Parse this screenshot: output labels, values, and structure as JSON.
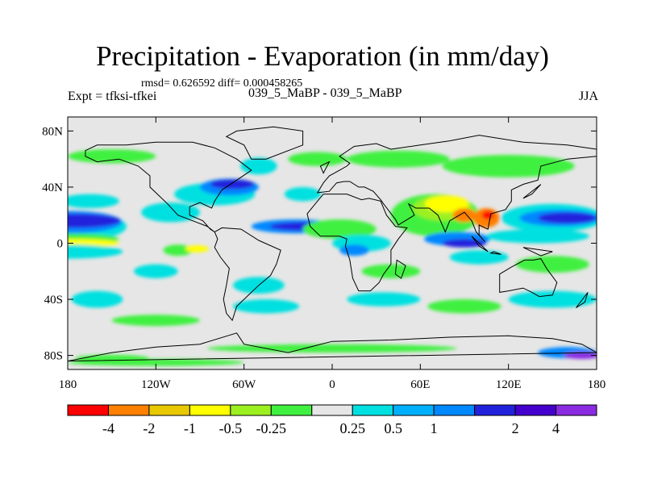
{
  "title": "Precipitation - Evaporation (in mm/day)",
  "stats": "rmsd= 0.626592 diff= 0.000458265",
  "expt": "Expt = tfksi-tfkei",
  "case": "039_5_MaBP - 039_5_MaBP",
  "season": "JJA",
  "map": {
    "lon_range": [
      -180,
      180
    ],
    "lat_range": [
      -90,
      90
    ],
    "lat_ticks": [
      {
        "value": 80,
        "label": "80N"
      },
      {
        "value": 40,
        "label": "40N"
      },
      {
        "value": 0,
        "label": "0"
      },
      {
        "value": -40,
        "label": "40S"
      },
      {
        "value": -80,
        "label": "80S"
      }
    ],
    "lon_ticks": [
      {
        "value": -180,
        "label": "180"
      },
      {
        "value": -120,
        "label": "120W"
      },
      {
        "value": -60,
        "label": "60W"
      },
      {
        "value": 0,
        "label": "0"
      },
      {
        "value": 60,
        "label": "60E"
      },
      {
        "value": 120,
        "label": "120E"
      },
      {
        "value": 180,
        "label": "180"
      }
    ],
    "background_color": "#e6e6e6",
    "field_blobs": [
      {
        "lon": -180,
        "lat": 12,
        "w": 80,
        "h": 22,
        "color": "#00e0e0"
      },
      {
        "lon": -178,
        "lat": 15,
        "w": 70,
        "h": 16,
        "color": "#0088ff"
      },
      {
        "lon": -175,
        "lat": 16,
        "w": 62,
        "h": 10,
        "color": "#2222dd"
      },
      {
        "lon": -180,
        "lat": 3,
        "w": 70,
        "h": 8,
        "color": "#40f040"
      },
      {
        "lon": -175,
        "lat": 0,
        "w": 60,
        "h": 6,
        "color": "#ffff00"
      },
      {
        "lon": -180,
        "lat": -6,
        "w": 75,
        "h": 10,
        "color": "#00e0e0"
      },
      {
        "lon": -110,
        "lat": 22,
        "w": 40,
        "h": 14,
        "color": "#00e0e0"
      },
      {
        "lon": -80,
        "lat": 35,
        "w": 55,
        "h": 16,
        "color": "#00e0e0"
      },
      {
        "lon": -70,
        "lat": 40,
        "w": 40,
        "h": 12,
        "color": "#0088ff"
      },
      {
        "lon": -68,
        "lat": 42,
        "w": 30,
        "h": 7,
        "color": "#2222dd"
      },
      {
        "lon": -50,
        "lat": 55,
        "w": 25,
        "h": 12,
        "color": "#00e0e0"
      },
      {
        "lon": -150,
        "lat": 62,
        "w": 60,
        "h": 10,
        "color": "#40f040"
      },
      {
        "lon": -165,
        "lat": 30,
        "w": 40,
        "h": 10,
        "color": "#00e0e0"
      },
      {
        "lon": -105,
        "lat": -5,
        "w": 20,
        "h": 8,
        "color": "#40f040"
      },
      {
        "lon": -92,
        "lat": -4,
        "w": 16,
        "h": 5,
        "color": "#ffff00"
      },
      {
        "lon": -120,
        "lat": -20,
        "w": 30,
        "h": 10,
        "color": "#00e0e0"
      },
      {
        "lon": -160,
        "lat": -40,
        "w": 35,
        "h": 12,
        "color": "#00e0e0"
      },
      {
        "lon": -50,
        "lat": -30,
        "w": 35,
        "h": 12,
        "color": "#00e0e0"
      },
      {
        "lon": -45,
        "lat": -45,
        "w": 45,
        "h": 10,
        "color": "#00e0e0"
      },
      {
        "lon": -20,
        "lat": 35,
        "w": 25,
        "h": 10,
        "color": "#00e0e0"
      },
      {
        "lon": -25,
        "lat": 12,
        "w": 60,
        "h": 10,
        "color": "#0088ff"
      },
      {
        "lon": -20,
        "lat": 12,
        "w": 45,
        "h": 6,
        "color": "#2222dd"
      },
      {
        "lon": 5,
        "lat": 10,
        "w": 50,
        "h": 14,
        "color": "#40f040"
      },
      {
        "lon": 20,
        "lat": 0,
        "w": 40,
        "h": 12,
        "color": "#00e0e0"
      },
      {
        "lon": 15,
        "lat": -5,
        "w": 20,
        "h": 8,
        "color": "#0088ff"
      },
      {
        "lon": 40,
        "lat": -20,
        "w": 40,
        "h": 10,
        "color": "#40f040"
      },
      {
        "lon": 35,
        "lat": -40,
        "w": 50,
        "h": 10,
        "color": "#00e0e0"
      },
      {
        "lon": 70,
        "lat": 20,
        "w": 60,
        "h": 30,
        "color": "#40f040"
      },
      {
        "lon": 75,
        "lat": 25,
        "w": 40,
        "h": 18,
        "color": "#9cf020"
      },
      {
        "lon": 78,
        "lat": 28,
        "w": 30,
        "h": 12,
        "color": "#ffff00"
      },
      {
        "lon": 90,
        "lat": 20,
        "w": 16,
        "h": 10,
        "color": "#ff8000"
      },
      {
        "lon": 105,
        "lat": 18,
        "w": 18,
        "h": 14,
        "color": "#ff8000"
      },
      {
        "lon": 106,
        "lat": 20,
        "w": 8,
        "h": 6,
        "color": "#ff0000"
      },
      {
        "lon": 85,
        "lat": 3,
        "w": 45,
        "h": 10,
        "color": "#0088ff"
      },
      {
        "lon": 90,
        "lat": 0,
        "w": 30,
        "h": 6,
        "color": "#2222dd"
      },
      {
        "lon": 100,
        "lat": -10,
        "w": 40,
        "h": 10,
        "color": "#00e0e0"
      },
      {
        "lon": 150,
        "lat": 18,
        "w": 70,
        "h": 20,
        "color": "#00e0e0"
      },
      {
        "lon": 155,
        "lat": 18,
        "w": 55,
        "h": 12,
        "color": "#0088ff"
      },
      {
        "lon": 160,
        "lat": 18,
        "w": 40,
        "h": 8,
        "color": "#2222dd"
      },
      {
        "lon": 140,
        "lat": 5,
        "w": 70,
        "h": 10,
        "color": "#00e0e0"
      },
      {
        "lon": 150,
        "lat": -15,
        "w": 50,
        "h": 12,
        "color": "#40f040"
      },
      {
        "lon": 120,
        "lat": 55,
        "w": 90,
        "h": 16,
        "color": "#40f040"
      },
      {
        "lon": 45,
        "lat": 60,
        "w": 70,
        "h": 12,
        "color": "#40f040"
      },
      {
        "lon": -10,
        "lat": 60,
        "w": 40,
        "h": 10,
        "color": "#40f040"
      },
      {
        "lon": 150,
        "lat": -40,
        "w": 60,
        "h": 12,
        "color": "#00e0e0"
      },
      {
        "lon": 90,
        "lat": -45,
        "w": 50,
        "h": 10,
        "color": "#40f040"
      },
      {
        "lon": -120,
        "lat": -55,
        "w": 60,
        "h": 8,
        "color": "#40f040"
      },
      {
        "lon": 0,
        "lat": -75,
        "w": 170,
        "h": 6,
        "color": "#40f040"
      },
      {
        "lon": -150,
        "lat": -82,
        "w": 50,
        "h": 5,
        "color": "#40f040"
      },
      {
        "lon": 160,
        "lat": -78,
        "w": 40,
        "h": 8,
        "color": "#0088ff"
      },
      {
        "lon": 170,
        "lat": -80,
        "w": 25,
        "h": 5,
        "color": "#8a2be2"
      },
      {
        "lon": -120,
        "lat": -85,
        "w": 120,
        "h": 5,
        "color": "#40f040"
      }
    ]
  },
  "colorbar": {
    "colors": [
      "#ff0000",
      "#ff8000",
      "#e8c800",
      "#ffff00",
      "#9cf020",
      "#40f040",
      "#e6e6e6",
      "#00e0e0",
      "#00b0ff",
      "#0088ff",
      "#2222dd",
      "#4400cc",
      "#8a2be2"
    ],
    "labels": [
      "-4",
      "-2",
      "-1",
      "-0.5",
      "-0.25",
      "0.25",
      "0.5",
      "1",
      "2",
      "4"
    ],
    "label_boundaries": [
      1,
      2,
      3,
      4,
      5,
      6,
      7,
      8,
      9,
      10,
      11,
      12
    ],
    "label_map": [
      0,
      1,
      2,
      3,
      4,
      6,
      7,
      8,
      10,
      11
    ]
  }
}
